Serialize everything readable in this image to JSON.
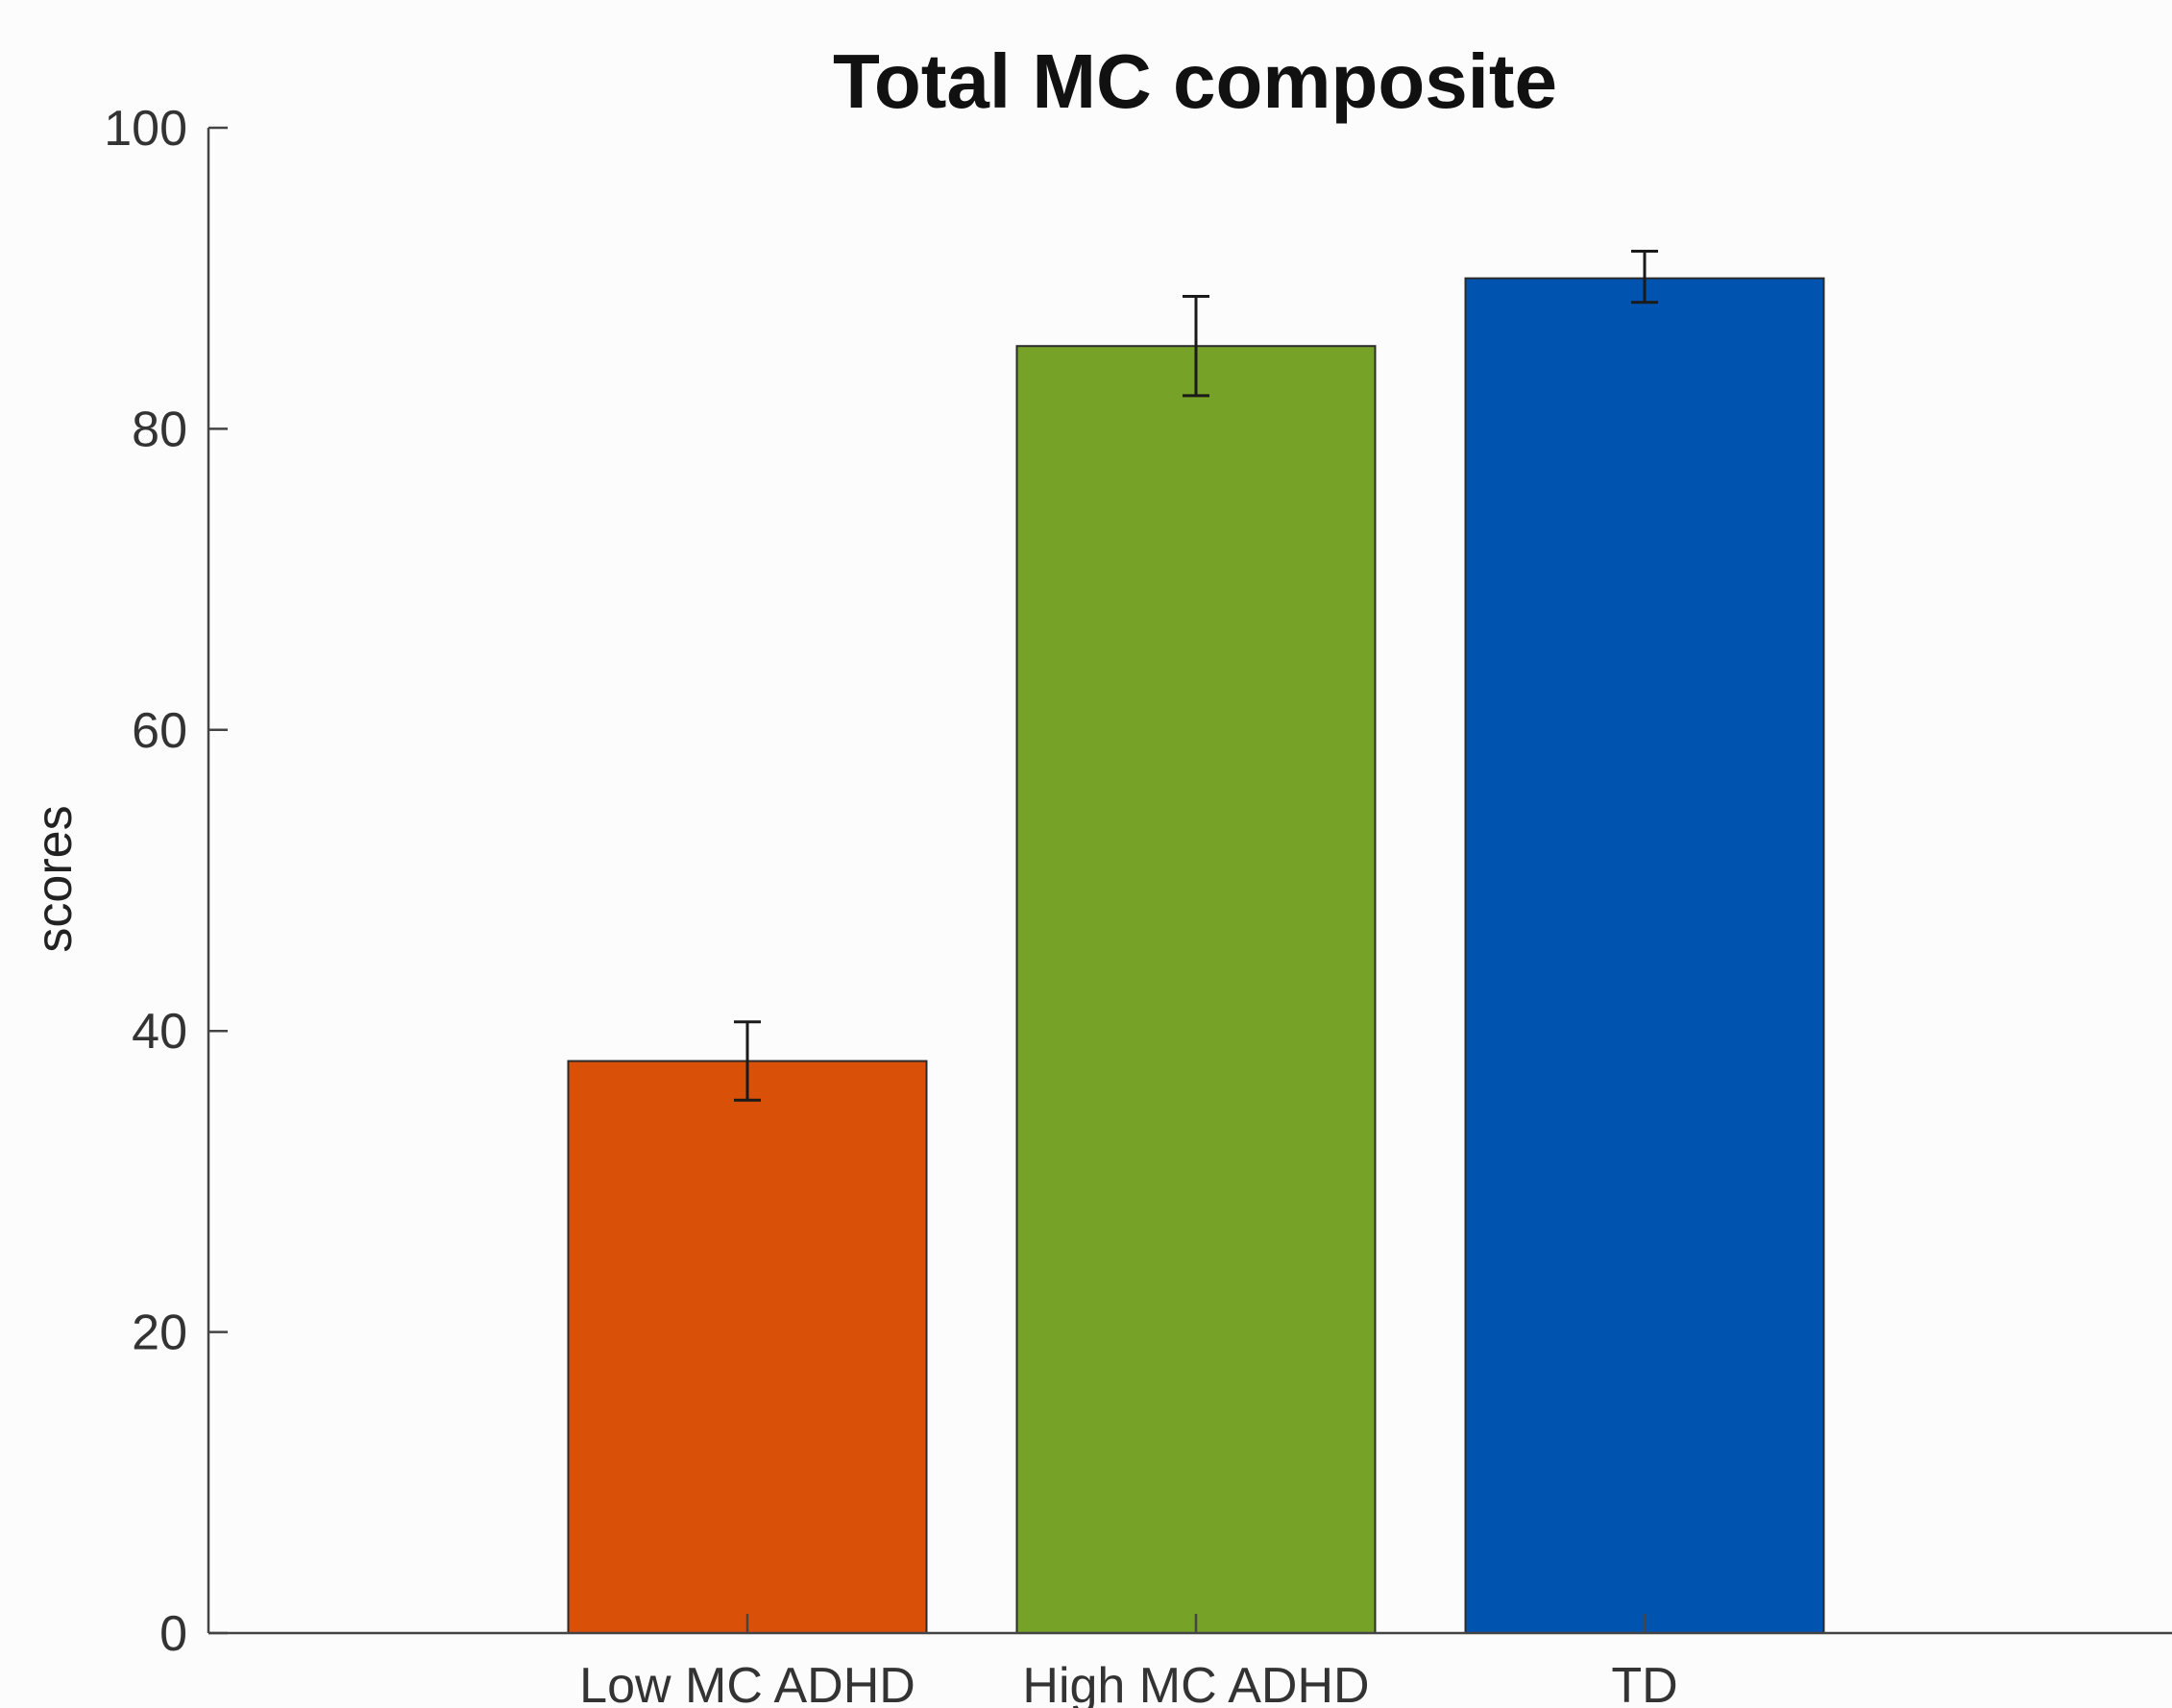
{
  "chart_data": {
    "type": "bar",
    "title": "Total MC composite",
    "xlabel": "",
    "ylabel": "scores",
    "categories": [
      "Low MC ADHD",
      "High MC ADHD",
      "TD"
    ],
    "values": [
      38,
      85.5,
      90
    ],
    "error_bars": [
      [
        35.4,
        40.6
      ],
      [
        82.2,
        88.8
      ],
      [
        88.4,
        91.8
      ]
    ],
    "colors": [
      "#d95008",
      "#76a228",
      "#0054b0"
    ],
    "ylim": [
      0,
      100
    ],
    "yticks": [
      0,
      20,
      40,
      60,
      80,
      100
    ],
    "grid": false,
    "legend": "none"
  }
}
